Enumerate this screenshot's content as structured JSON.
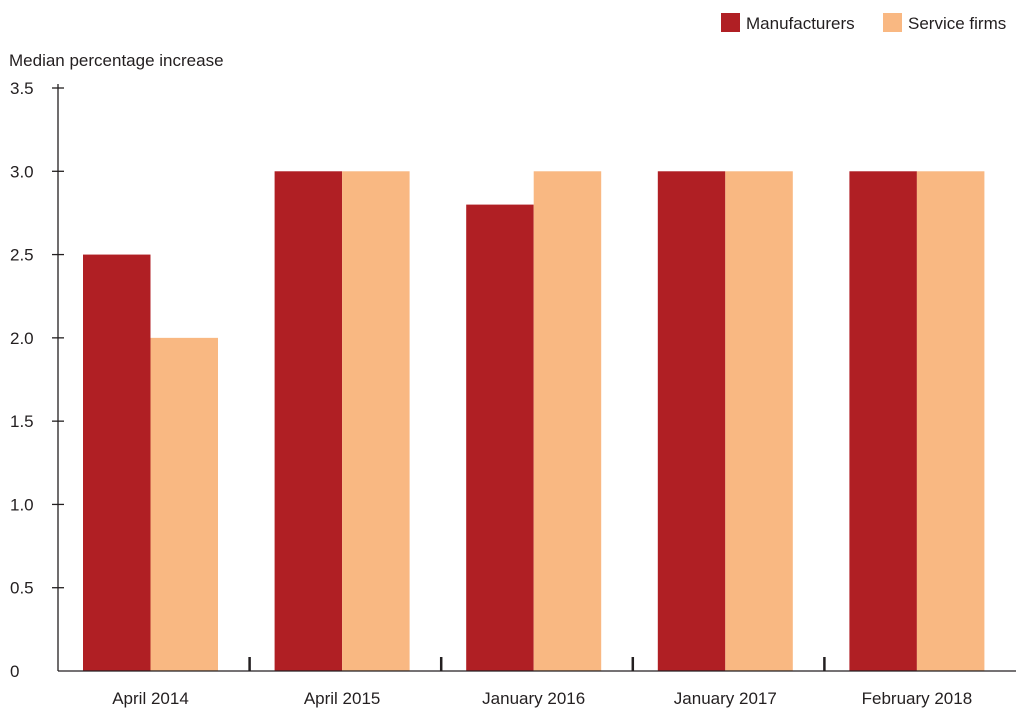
{
  "chart_data": {
    "type": "bar",
    "ylabel": "Median percentage increase",
    "xlabel": "",
    "ylim": [
      0,
      3.5
    ],
    "yticks": [
      0,
      0.5,
      1.0,
      1.5,
      2.0,
      2.5,
      3.0,
      3.5
    ],
    "ytick_labels": [
      "0",
      "0.5",
      "1.0",
      "1.5",
      "2.0",
      "2.5",
      "3.0",
      "3.5"
    ],
    "categories": [
      "April 2014",
      "April 2015",
      "January 2016",
      "January 2017",
      "February 2018"
    ],
    "series": [
      {
        "name": "Manufacturers",
        "color": "#b01f24",
        "values": [
          2.5,
          3.0,
          2.8,
          3.0,
          3.0
        ]
      },
      {
        "name": "Service firms",
        "color": "#f9b882",
        "values": [
          2.0,
          3.0,
          3.0,
          3.0,
          3.0
        ]
      }
    ],
    "legend_position": "top-right",
    "grid": false
  }
}
